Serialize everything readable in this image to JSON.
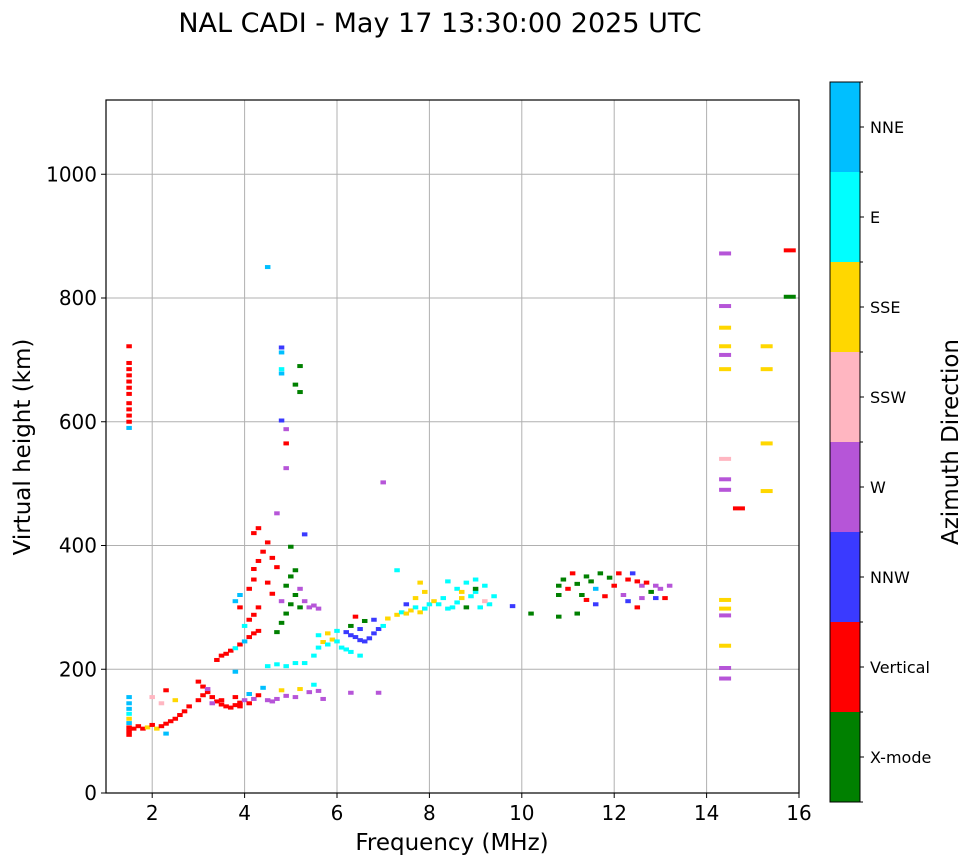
{
  "chart_data": {
    "type": "scatter",
    "title": "NAL CADI - May 17 13:30:00 2025 UTC",
    "xlabel": "Frequency (MHz)",
    "ylabel": "Virtual height (km)",
    "colorbar_label": "Azimuth Direction",
    "xlim": [
      1.0,
      16.0
    ],
    "ylim": [
      0,
      1120
    ],
    "xticks": [
      2,
      4,
      6,
      8,
      10,
      12,
      14,
      16
    ],
    "yticks": [
      0,
      200,
      400,
      600,
      800,
      1000
    ],
    "grid": true,
    "categories": [
      {
        "name": "X-mode",
        "color": "#008000"
      },
      {
        "name": "Vertical",
        "color": "#ff0000"
      },
      {
        "name": "NNW",
        "color": "#3a3aff"
      },
      {
        "name": "W",
        "color": "#b655d8"
      },
      {
        "name": "SSW",
        "color": "#ffb6c1"
      },
      {
        "name": "SSE",
        "color": "#ffd700"
      },
      {
        "name": "E",
        "color": "#00ffff"
      },
      {
        "name": "NNE",
        "color": "#00bfff"
      }
    ],
    "points": [
      [
        1.5,
        94,
        "Vertical"
      ],
      [
        1.5,
        100,
        "Vertical"
      ],
      [
        1.5,
        106,
        "Vertical"
      ],
      [
        1.5,
        113,
        "NNE"
      ],
      [
        1.5,
        120,
        "SSE"
      ],
      [
        1.5,
        128,
        "E"
      ],
      [
        1.5,
        136,
        "NNE"
      ],
      [
        1.5,
        145,
        "NNE"
      ],
      [
        1.5,
        155,
        "NNE"
      ],
      [
        1.6,
        104,
        "Vertical"
      ],
      [
        1.7,
        108,
        "Vertical"
      ],
      [
        1.8,
        104,
        "Vertical"
      ],
      [
        1.9,
        106,
        "SSE"
      ],
      [
        2.0,
        110,
        "Vertical"
      ],
      [
        2.1,
        104,
        "SSE"
      ],
      [
        2.2,
        108,
        "Vertical"
      ],
      [
        2.3,
        112,
        "Vertical"
      ],
      [
        2.4,
        116,
        "Vertical"
      ],
      [
        2.5,
        120,
        "Vertical"
      ],
      [
        2.6,
        126,
        "Vertical"
      ],
      [
        2.7,
        132,
        "Vertical"
      ],
      [
        2.3,
        96,
        "NNE"
      ],
      [
        2.5,
        150,
        "SSE"
      ],
      [
        2.8,
        140,
        "Vertical"
      ],
      [
        2.3,
        166,
        "Vertical"
      ],
      [
        2.0,
        155,
        "SSW"
      ],
      [
        2.2,
        145,
        "SSW"
      ],
      [
        3.0,
        150,
        "Vertical"
      ],
      [
        3.1,
        158,
        "Vertical"
      ],
      [
        3.2,
        163,
        "Vertical"
      ],
      [
        3.3,
        155,
        "Vertical"
      ],
      [
        3.4,
        148,
        "Vertical"
      ],
      [
        3.5,
        143,
        "Vertical"
      ],
      [
        3.6,
        140,
        "Vertical"
      ],
      [
        3.7,
        138,
        "Vertical"
      ],
      [
        3.8,
        142,
        "Vertical"
      ],
      [
        3.9,
        146,
        "Vertical"
      ],
      [
        4.0,
        150,
        "W"
      ],
      [
        4.1,
        145,
        "Vertical"
      ],
      [
        4.2,
        152,
        "W"
      ],
      [
        3.0,
        180,
        "Vertical"
      ],
      [
        3.1,
        172,
        "Vertical"
      ],
      [
        3.2,
        168,
        "W"
      ],
      [
        3.3,
        145,
        "W"
      ],
      [
        3.5,
        150,
        "Vertical"
      ],
      [
        3.8,
        155,
        "Vertical"
      ],
      [
        3.9,
        140,
        "Vertical"
      ],
      [
        4.1,
        160,
        "NNE"
      ],
      [
        4.3,
        158,
        "Vertical"
      ],
      [
        4.4,
        170,
        "NNE"
      ],
      [
        4.5,
        150,
        "W"
      ],
      [
        4.6,
        148,
        "W"
      ],
      [
        4.7,
        152,
        "W"
      ],
      [
        4.9,
        157,
        "W"
      ],
      [
        5.1,
        155,
        "W"
      ],
      [
        5.4,
        163,
        "W"
      ],
      [
        5.7,
        152,
        "W"
      ],
      [
        6.3,
        162,
        "W"
      ],
      [
        6.9,
        162,
        "W"
      ],
      [
        3.8,
        196,
        "NNE"
      ],
      [
        4.8,
        166,
        "SSE"
      ],
      [
        5.2,
        168,
        "SSE"
      ],
      [
        5.5,
        175,
        "E"
      ],
      [
        5.6,
        165,
        "W"
      ],
      [
        3.4,
        215,
        "Vertical"
      ],
      [
        3.5,
        222,
        "Vertical"
      ],
      [
        3.6,
        225,
        "Vertical"
      ],
      [
        3.7,
        230,
        "Vertical"
      ],
      [
        3.8,
        234,
        "E"
      ],
      [
        3.9,
        240,
        "Vertical"
      ],
      [
        4.0,
        245,
        "NNE"
      ],
      [
        4.1,
        252,
        "Vertical"
      ],
      [
        4.2,
        258,
        "Vertical"
      ],
      [
        4.3,
        262,
        "Vertical"
      ],
      [
        4.0,
        270,
        "E"
      ],
      [
        4.1,
        280,
        "Vertical"
      ],
      [
        4.2,
        288,
        "Vertical"
      ],
      [
        3.9,
        300,
        "Vertical"
      ],
      [
        4.3,
        300,
        "Vertical"
      ],
      [
        3.8,
        310,
        "NNE"
      ],
      [
        3.9,
        320,
        "NNE"
      ],
      [
        4.1,
        330,
        "Vertical"
      ],
      [
        4.2,
        345,
        "Vertical"
      ],
      [
        4.2,
        362,
        "Vertical"
      ],
      [
        4.3,
        375,
        "Vertical"
      ],
      [
        4.4,
        390,
        "Vertical"
      ],
      [
        4.2,
        420,
        "Vertical"
      ],
      [
        4.3,
        428,
        "Vertical"
      ],
      [
        4.5,
        405,
        "Vertical"
      ],
      [
        4.6,
        380,
        "Vertical"
      ],
      [
        4.7,
        365,
        "Vertical"
      ],
      [
        4.5,
        340,
        "Vertical"
      ],
      [
        4.6,
        322,
        "Vertical"
      ],
      [
        4.7,
        260,
        "X-mode"
      ],
      [
        4.8,
        275,
        "X-mode"
      ],
      [
        4.9,
        290,
        "X-mode"
      ],
      [
        5.0,
        305,
        "X-mode"
      ],
      [
        5.1,
        320,
        "X-mode"
      ],
      [
        4.9,
        335,
        "X-mode"
      ],
      [
        5.0,
        350,
        "X-mode"
      ],
      [
        5.1,
        360,
        "X-mode"
      ],
      [
        5.2,
        300,
        "X-mode"
      ],
      [
        4.8,
        310,
        "W"
      ],
      [
        5.3,
        310,
        "W"
      ],
      [
        5.4,
        300,
        "W"
      ],
      [
        5.5,
        303,
        "W"
      ],
      [
        5.6,
        298,
        "W"
      ],
      [
        5.2,
        330,
        "W"
      ],
      [
        4.5,
        205,
        "E"
      ],
      [
        4.7,
        208,
        "E"
      ],
      [
        4.9,
        205,
        "E"
      ],
      [
        5.1,
        210,
        "E"
      ],
      [
        5.3,
        210,
        "E"
      ],
      [
        5.5,
        222,
        "E"
      ],
      [
        5.6,
        235,
        "E"
      ],
      [
        5.7,
        244,
        "SSE"
      ],
      [
        5.8,
        240,
        "E"
      ],
      [
        5.9,
        248,
        "SSE"
      ],
      [
        6.0,
        245,
        "E"
      ],
      [
        6.1,
        235,
        "E"
      ],
      [
        6.2,
        232,
        "E"
      ],
      [
        6.3,
        228,
        "E"
      ],
      [
        6.5,
        222,
        "E"
      ],
      [
        5.6,
        255,
        "E"
      ],
      [
        5.8,
        258,
        "SSE"
      ],
      [
        6.0,
        262,
        "E"
      ],
      [
        6.2,
        260,
        "NNW"
      ],
      [
        6.3,
        255,
        "NNW"
      ],
      [
        6.4,
        252,
        "NNW"
      ],
      [
        6.5,
        247,
        "NNW"
      ],
      [
        6.6,
        245,
        "NNW"
      ],
      [
        6.7,
        250,
        "NNW"
      ],
      [
        6.8,
        258,
        "NNW"
      ],
      [
        6.9,
        265,
        "NNW"
      ],
      [
        6.5,
        265,
        "NNW"
      ],
      [
        6.3,
        270,
        "X-mode"
      ],
      [
        6.4,
        285,
        "Vertical"
      ],
      [
        6.6,
        278,
        "X-mode"
      ],
      [
        6.8,
        280,
        "NNW"
      ],
      [
        7.0,
        270,
        "E"
      ],
      [
        7.1,
        282,
        "SSE"
      ],
      [
        7.3,
        288,
        "SSE"
      ],
      [
        7.4,
        292,
        "E"
      ],
      [
        7.5,
        290,
        "SSE"
      ],
      [
        7.6,
        295,
        "SSE"
      ],
      [
        7.7,
        300,
        "E"
      ],
      [
        7.8,
        292,
        "SSE"
      ],
      [
        7.9,
        298,
        "E"
      ],
      [
        8.0,
        305,
        "E"
      ],
      [
        7.5,
        305,
        "NNW"
      ],
      [
        7.7,
        315,
        "SSE"
      ],
      [
        7.9,
        325,
        "SSE"
      ],
      [
        7.8,
        340,
        "SSE"
      ],
      [
        8.1,
        310,
        "SSE"
      ],
      [
        8.2,
        305,
        "E"
      ],
      [
        8.3,
        315,
        "E"
      ],
      [
        8.4,
        298,
        "E"
      ],
      [
        8.5,
        300,
        "E"
      ],
      [
        8.6,
        308,
        "E"
      ],
      [
        8.7,
        315,
        "SSE"
      ],
      [
        8.8,
        300,
        "X-mode"
      ],
      [
        8.9,
        318,
        "E"
      ],
      [
        9.0,
        325,
        "E"
      ],
      [
        9.1,
        300,
        "E"
      ],
      [
        9.2,
        335,
        "E"
      ],
      [
        9.3,
        305,
        "E"
      ],
      [
        9.4,
        318,
        "E"
      ],
      [
        8.6,
        330,
        "E"
      ],
      [
        8.8,
        340,
        "E"
      ],
      [
        8.4,
        342,
        "E"
      ],
      [
        9.0,
        345,
        "E"
      ],
      [
        9.2,
        310,
        "SSW"
      ],
      [
        9.0,
        330,
        "X-mode"
      ],
      [
        8.7,
        325,
        "SSE"
      ],
      [
        9.8,
        302,
        "NNW"
      ],
      [
        10.2,
        290,
        "X-mode"
      ],
      [
        10.8,
        285,
        "X-mode"
      ],
      [
        10.8,
        320,
        "X-mode"
      ],
      [
        10.8,
        335,
        "X-mode"
      ],
      [
        10.9,
        345,
        "X-mode"
      ],
      [
        11.0,
        330,
        "Vertical"
      ],
      [
        11.1,
        355,
        "Vertical"
      ],
      [
        11.2,
        338,
        "X-mode"
      ],
      [
        11.3,
        320,
        "X-mode"
      ],
      [
        11.4,
        350,
        "X-mode"
      ],
      [
        11.5,
        342,
        "X-mode"
      ],
      [
        11.6,
        330,
        "NNE"
      ],
      [
        11.7,
        355,
        "X-mode"
      ],
      [
        11.9,
        348,
        "X-mode"
      ],
      [
        11.2,
        290,
        "X-mode"
      ],
      [
        11.4,
        312,
        "Vertical"
      ],
      [
        11.6,
        305,
        "NNW"
      ],
      [
        11.8,
        318,
        "Vertical"
      ],
      [
        12.0,
        335,
        "Vertical"
      ],
      [
        12.1,
        355,
        "Vertical"
      ],
      [
        12.3,
        345,
        "Vertical"
      ],
      [
        12.4,
        355,
        "NNW"
      ],
      [
        12.5,
        342,
        "Vertical"
      ],
      [
        12.6,
        335,
        "W"
      ],
      [
        12.7,
        340,
        "Vertical"
      ],
      [
        12.8,
        325,
        "X-mode"
      ],
      [
        12.9,
        335,
        "W"
      ],
      [
        13.0,
        330,
        "W"
      ],
      [
        13.1,
        315,
        "Vertical"
      ],
      [
        13.2,
        335,
        "W"
      ],
      [
        12.6,
        315,
        "W"
      ],
      [
        12.3,
        310,
        "NNW"
      ],
      [
        12.2,
        320,
        "W"
      ],
      [
        12.5,
        300,
        "Vertical"
      ],
      [
        12.9,
        315,
        "NNW"
      ],
      [
        1.5,
        590,
        "NNE"
      ],
      [
        1.5,
        600,
        "Vertical"
      ],
      [
        1.5,
        610,
        "Vertical"
      ],
      [
        1.5,
        620,
        "Vertical"
      ],
      [
        1.5,
        630,
        "Vertical"
      ],
      [
        1.5,
        645,
        "Vertical"
      ],
      [
        1.5,
        655,
        "Vertical"
      ],
      [
        1.5,
        665,
        "Vertical"
      ],
      [
        1.5,
        675,
        "Vertical"
      ],
      [
        1.5,
        685,
        "Vertical"
      ],
      [
        1.5,
        695,
        "Vertical"
      ],
      [
        1.5,
        722,
        "Vertical"
      ],
      [
        4.8,
        720,
        "NNW"
      ],
      [
        4.8,
        712,
        "NNE"
      ],
      [
        4.8,
        685,
        "E"
      ],
      [
        4.8,
        678,
        "NNE"
      ],
      [
        5.2,
        690,
        "X-mode"
      ],
      [
        5.1,
        660,
        "X-mode"
      ],
      [
        5.2,
        648,
        "X-mode"
      ],
      [
        4.8,
        602,
        "NNW"
      ],
      [
        4.9,
        588,
        "W"
      ],
      [
        4.9,
        565,
        "Vertical"
      ],
      [
        4.9,
        525,
        "W"
      ],
      [
        4.7,
        452,
        "W"
      ],
      [
        4.5,
        850,
        "NNE"
      ],
      [
        5.0,
        398,
        "X-mode"
      ],
      [
        5.3,
        418,
        "NNW"
      ],
      [
        7.0,
        502,
        "W"
      ],
      [
        7.3,
        360,
        "E"
      ],
      [
        14.4,
        872,
        "W"
      ],
      [
        14.4,
        787,
        "W"
      ],
      [
        14.4,
        752,
        "SSE"
      ],
      [
        14.4,
        722,
        "SSE"
      ],
      [
        14.4,
        708,
        "W"
      ],
      [
        14.4,
        685,
        "SSE"
      ],
      [
        14.4,
        540,
        "SSW"
      ],
      [
        14.4,
        507,
        "W"
      ],
      [
        14.4,
        490,
        "W"
      ],
      [
        14.4,
        312,
        "SSE"
      ],
      [
        14.4,
        298,
        "SSE"
      ],
      [
        14.4,
        287,
        "W"
      ],
      [
        14.4,
        238,
        "SSE"
      ],
      [
        14.4,
        202,
        "W"
      ],
      [
        14.4,
        185,
        "W"
      ],
      [
        14.7,
        460,
        "Vertical"
      ],
      [
        15.3,
        722,
        "SSE"
      ],
      [
        15.3,
        685,
        "SSE"
      ],
      [
        15.3,
        565,
        "SSE"
      ],
      [
        15.3,
        488,
        "SSE"
      ],
      [
        15.8,
        877,
        "Vertical"
      ],
      [
        15.8,
        802,
        "X-mode"
      ]
    ]
  }
}
